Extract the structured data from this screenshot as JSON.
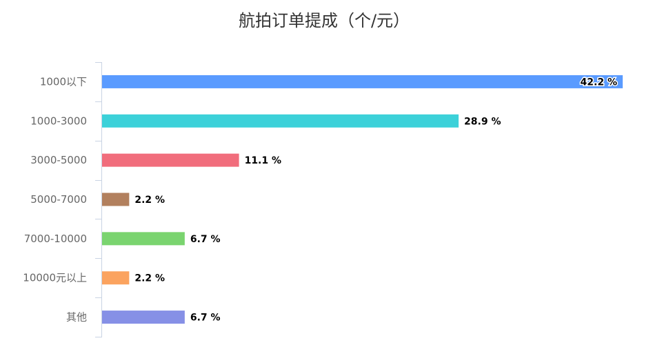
{
  "chart_data": {
    "type": "bar",
    "orientation": "horizontal",
    "title": "航拍订单提成（个/元）",
    "categories": [
      "1000以下",
      "1000-3000",
      "3000-5000",
      "5000-7000",
      "7000-10000",
      "10000元以上",
      "其他"
    ],
    "values": [
      42.2,
      28.9,
      11.1,
      2.2,
      6.7,
      2.2,
      6.7
    ],
    "value_suffix": " %",
    "value_labels": [
      "42.2 %",
      "28.9 %",
      "11.1 %",
      "2.2 %",
      "6.7 %",
      "2.2 %",
      "6.7 %"
    ],
    "colors": [
      "#5a9bff",
      "#3cd1d9",
      "#f16d7c",
      "#b2805e",
      "#7ad46f",
      "#fba35f",
      "#8690e6"
    ],
    "xlim": [
      0,
      42.2
    ],
    "grid": false,
    "legend": "none",
    "axis_color": "#c9d3e3"
  }
}
